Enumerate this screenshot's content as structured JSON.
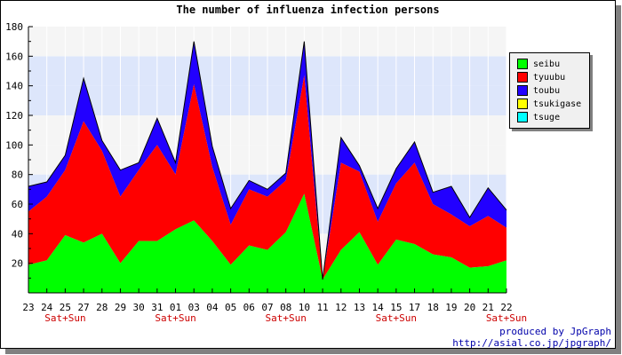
{
  "chart_data": {
    "type": "area",
    "title": "The number of influenza infection persons",
    "stacked": true,
    "categories": [
      "23",
      "24",
      "25",
      "27",
      "28",
      "29",
      "30",
      "31",
      "01",
      "03",
      "04",
      "05",
      "06",
      "07",
      "08",
      "10",
      "11",
      "12",
      "13",
      "14",
      "15",
      "17",
      "18",
      "19",
      "20",
      "21",
      "22"
    ],
    "weekend_label": "Sat+Sun",
    "weekend_after": [
      "25",
      "01",
      "08",
      "15",
      "22"
    ],
    "ylim": [
      0,
      180
    ],
    "yticks": [
      20,
      40,
      60,
      80,
      100,
      120,
      140,
      160,
      180
    ],
    "grid": true,
    "legend_position": "right",
    "series": [
      {
        "name": "seibu",
        "color": "#00ff00",
        "values": [
          19,
          22,
          39,
          34,
          40,
          20,
          35,
          35,
          43,
          49,
          35,
          19,
          32,
          29,
          41,
          67,
          9,
          29,
          41,
          19,
          36,
          33,
          26,
          24,
          17,
          18,
          22
        ]
      },
      {
        "name": "tyuubu",
        "color": "#ff0000",
        "values": [
          36,
          43,
          44,
          82,
          56,
          45,
          48,
          65,
          37,
          92,
          50,
          27,
          38,
          36,
          35,
          80,
          0,
          59,
          41,
          29,
          38,
          55,
          34,
          29,
          28,
          34,
          22
        ]
      },
      {
        "name": "toubu",
        "color": "#2200ff",
        "values": [
          17,
          10,
          10,
          29,
          7,
          18,
          5,
          18,
          8,
          29,
          14,
          11,
          6,
          5,
          5,
          23,
          0,
          17,
          4,
          9,
          10,
          14,
          8,
          19,
          6,
          19,
          12
        ]
      },
      {
        "name": "tsukigase",
        "color": "#ffff00",
        "values": [
          0,
          0,
          0,
          0,
          0,
          0,
          0,
          0,
          0,
          0,
          0,
          0,
          0,
          0,
          0,
          0,
          0,
          0,
          0,
          0,
          0,
          0,
          0,
          0,
          0,
          0,
          0
        ]
      },
      {
        "name": "tsuge",
        "color": "#00ffff",
        "values": [
          0,
          0,
          0,
          0,
          0,
          0,
          0,
          0,
          0,
          0,
          0,
          0,
          0,
          0,
          0,
          0,
          0,
          0,
          0,
          0,
          0,
          0,
          0,
          0,
          0,
          0,
          0
        ]
      }
    ]
  },
  "footer": {
    "line1": "produced by JpGraph",
    "line2": "http://asial.co.jp/jpgraph/"
  }
}
